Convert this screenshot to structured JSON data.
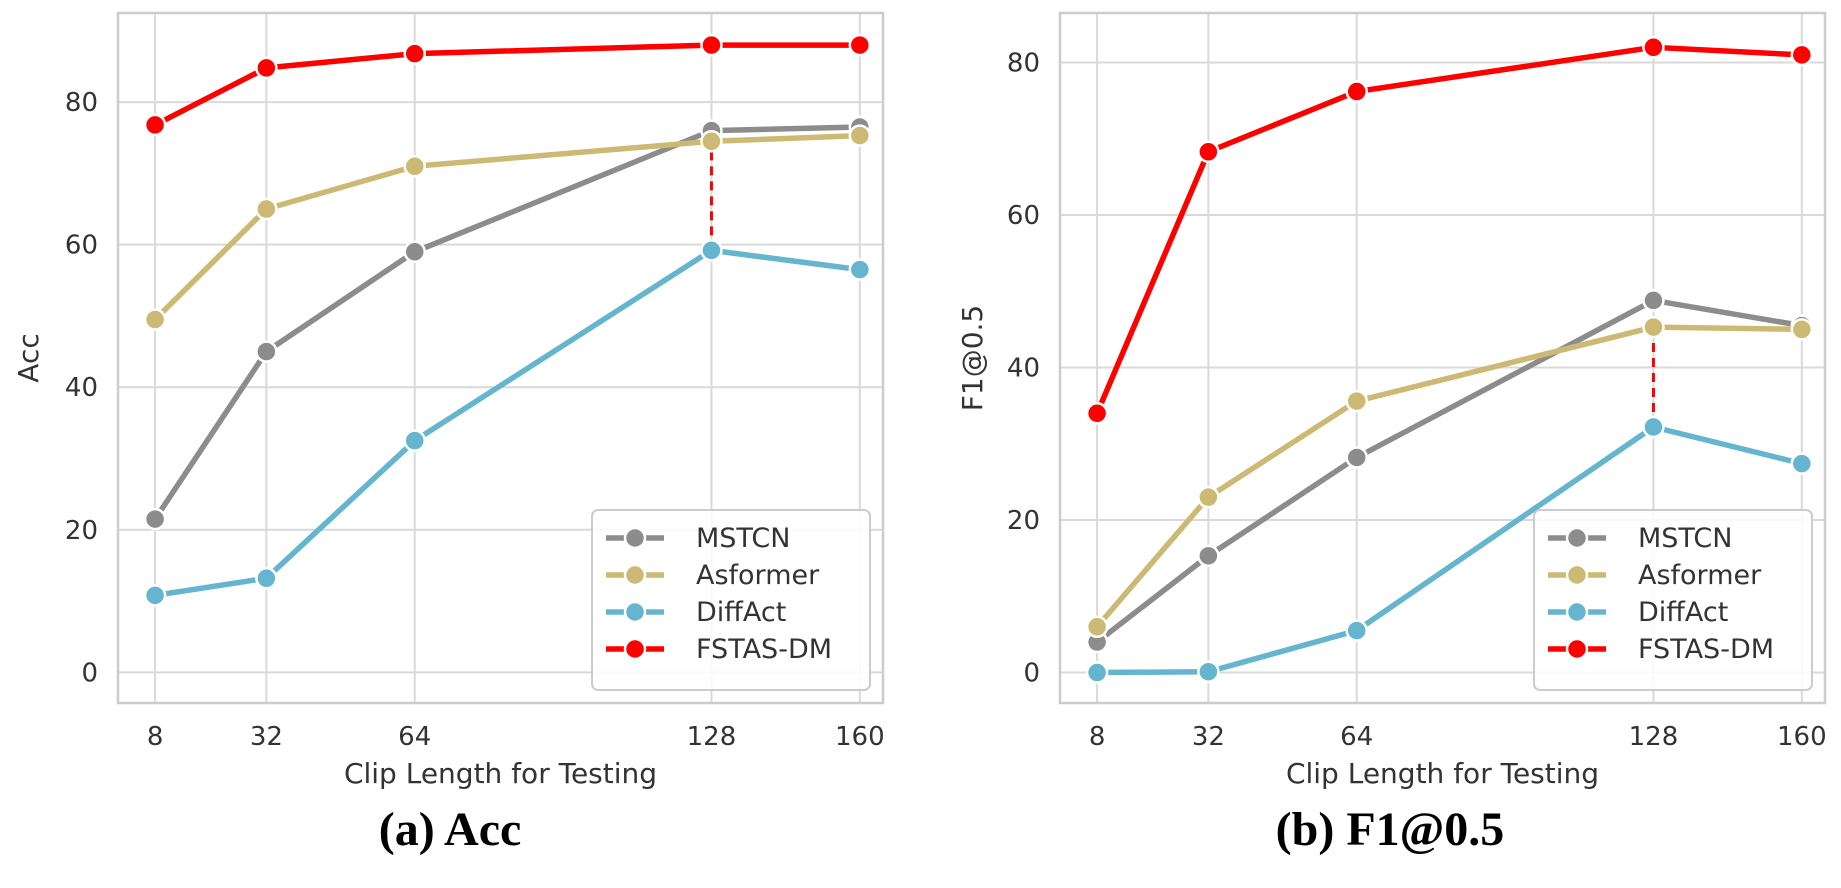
{
  "chart_data": [
    {
      "type": "line",
      "caption": "(a) Acc",
      "xlabel": "Clip Length for Testing",
      "ylabel": "Acc",
      "x": [
        8,
        32,
        64,
        128,
        160
      ],
      "xticks": [
        "8",
        "32",
        "64",
        "128",
        "160"
      ],
      "yticks": [
        "0",
        "20",
        "40",
        "60",
        "80"
      ],
      "xlim": [
        0,
        165
      ],
      "ylim": [
        -4.3,
        92.5
      ],
      "grid": true,
      "legend_position": "lower-right",
      "series": [
        {
          "name": "MSTCN",
          "color": "#8c8c8c",
          "values": [
            21.5,
            45,
            59,
            76,
            76.5
          ]
        },
        {
          "name": "Asformer",
          "color": "#ccb974",
          "values": [
            49.5,
            65,
            71,
            74.5,
            75.3
          ]
        },
        {
          "name": "DiffAct",
          "color": "#64b5cd",
          "values": [
            10.8,
            13.2,
            32.5,
            59.2,
            56.5
          ]
        },
        {
          "name": "FSTAS-DM",
          "color": "#ff0000",
          "values": [
            76.8,
            84.8,
            86.8,
            88,
            88
          ]
        }
      ],
      "annotation": {
        "type": "vertical-dashed",
        "x": 128,
        "from": 59.2,
        "to": 74.5,
        "color": "#ff0000"
      }
    },
    {
      "type": "line",
      "caption": "(b) F1@0.5",
      "xlabel": "Clip Length for Testing",
      "ylabel": "F1@0.5",
      "x": [
        8,
        32,
        64,
        128,
        160
      ],
      "xticks": [
        "8",
        "32",
        "64",
        "128",
        "160"
      ],
      "yticks": [
        "0",
        "20",
        "40",
        "60",
        "80"
      ],
      "xlim": [
        0,
        165
      ],
      "ylim": [
        -4,
        86.5
      ],
      "grid": true,
      "legend_position": "lower-right",
      "series": [
        {
          "name": "MSTCN",
          "color": "#8c8c8c",
          "values": [
            4,
            15.3,
            28.2,
            48.8,
            45.5
          ]
        },
        {
          "name": "Asformer",
          "color": "#ccb974",
          "values": [
            6,
            23,
            35.6,
            45.3,
            45
          ]
        },
        {
          "name": "DiffAct",
          "color": "#64b5cd",
          "values": [
            0,
            0.1,
            5.5,
            32.2,
            27.4
          ]
        },
        {
          "name": "FSTAS-DM",
          "color": "#ff0000",
          "values": [
            34,
            68.3,
            76.2,
            82,
            81
          ]
        }
      ],
      "annotation": {
        "type": "vertical-dashed",
        "x": 128,
        "from": 32.2,
        "to": 45.3,
        "color": "#ff0000"
      }
    }
  ]
}
